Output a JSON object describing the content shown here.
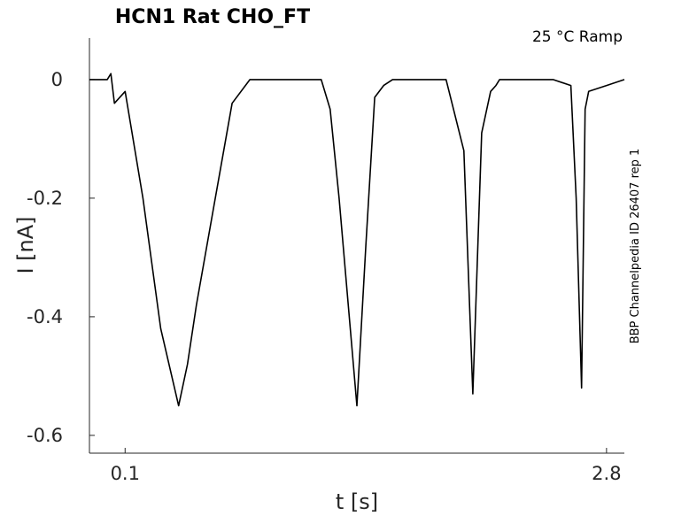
{
  "chart_data": {
    "type": "line",
    "title": "HCN1  Rat  CHO_FT",
    "annotation": "25 °C  Ramp",
    "side_label": "BBP Channelpedia ID 26407 rep 1",
    "xlabel": "t [s]",
    "ylabel": "I [nA]",
    "xlim": [
      -0.1,
      2.9
    ],
    "ylim": [
      -0.63,
      0.07
    ],
    "x_ticks": [
      {
        "value": 0.1,
        "label": "0.1"
      },
      {
        "value": 2.8,
        "label": "2.8"
      }
    ],
    "y_ticks": [
      {
        "value": 0,
        "label": "0"
      },
      {
        "value": -0.2,
        "label": "-0.2"
      },
      {
        "value": -0.4,
        "label": "-0.4"
      },
      {
        "value": -0.6,
        "label": "-0.6"
      }
    ],
    "grid": false,
    "legend": "none",
    "series": [
      {
        "x": [
          -0.1,
          0.0,
          0.02,
          0.04,
          0.1,
          0.2,
          0.3,
          0.4,
          0.45,
          0.5,
          0.6,
          0.7,
          0.8,
          0.85,
          0.9,
          1.0,
          1.1,
          1.2,
          1.25,
          1.3,
          1.4,
          1.45,
          1.5,
          1.55,
          1.6,
          1.7,
          1.8,
          1.9,
          2.0,
          2.05,
          2.1,
          2.15,
          2.18,
          2.2,
          2.3,
          2.4,
          2.5,
          2.6,
          2.63,
          2.66,
          2.68,
          2.7,
          2.8,
          2.9
        ],
        "y": [
          0.0,
          0.0,
          0.01,
          -0.04,
          -0.02,
          -0.2,
          -0.42,
          -0.55,
          -0.48,
          -0.38,
          -0.21,
          -0.04,
          0.0,
          0.0,
          0.0,
          0.0,
          0.0,
          0.0,
          -0.05,
          -0.2,
          -0.55,
          -0.28,
          -0.03,
          -0.01,
          0.0,
          0.0,
          0.0,
          0.0,
          -0.12,
          -0.53,
          -0.09,
          -0.02,
          -0.01,
          0.0,
          0.0,
          0.0,
          0.0,
          -0.01,
          -0.2,
          -0.52,
          -0.05,
          -0.02,
          -0.01,
          0.0
        ]
      }
    ]
  }
}
